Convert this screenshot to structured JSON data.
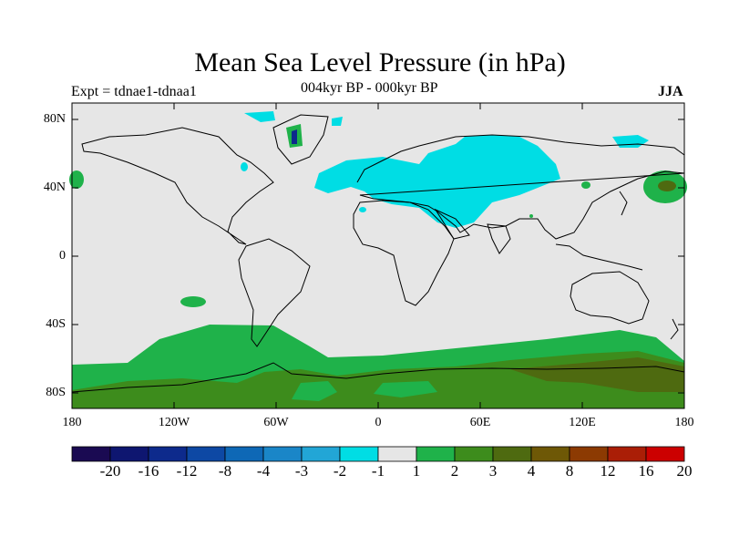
{
  "title": "Mean Sea Level Pressure (in hPa)",
  "subtitle": "004kyr BP - 000kyr BP",
  "experiment": "Expt = tdnae1-tdnaa1",
  "season": "JJA",
  "lat_labels": [
    "80N",
    "40N",
    "0",
    "40S",
    "80S"
  ],
  "lon_labels": [
    "180",
    "120W",
    "60W",
    "0",
    "60E",
    "120E",
    "180"
  ],
  "colorbar": {
    "colors": [
      "#1a0a52",
      "#0e1670",
      "#0d2a8c",
      "#0d48a4",
      "#0e68b6",
      "#1a86c8",
      "#22a6d6",
      "#00dde4",
      "#e6e6e6",
      "#1fb24a",
      "#3d8c1c",
      "#4e6a10",
      "#6e5806",
      "#8c3a02",
      "#aa1e06",
      "#cc0000"
    ],
    "labels": [
      "-20",
      "-16",
      "-12",
      "-8",
      "-4",
      "-3",
      "-2",
      "-1",
      "1",
      "2",
      "3",
      "4",
      "8",
      "12",
      "16",
      "20"
    ]
  },
  "colors": {
    "land_sea_bg": "#e6e6e6",
    "cyan_negative": "#00dde4",
    "green_positive": "#1fb24a",
    "dark_green": "#3d8c1c",
    "olive": "#4e6a10"
  }
}
